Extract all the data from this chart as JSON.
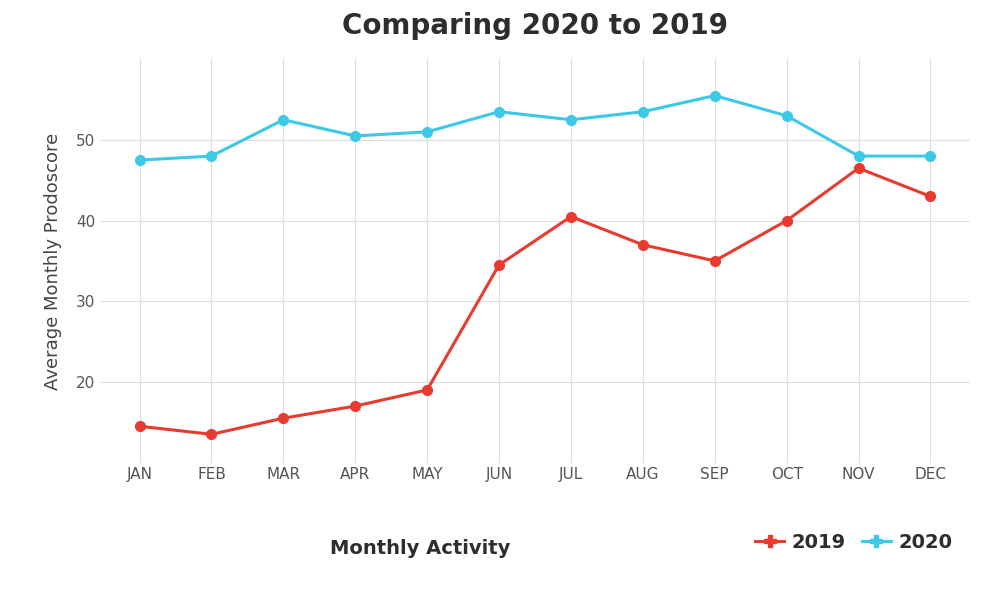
{
  "title": "Comparing 2020 to 2019",
  "xlabel": "Monthly Activity",
  "ylabel": "Average Monthly Prodoscore",
  "months": [
    "JAN",
    "FEB",
    "MAR",
    "APR",
    "MAY",
    "JUN",
    "JUL",
    "AUG",
    "SEP",
    "OCT",
    "NOV",
    "DEC"
  ],
  "data_2019": [
    14.5,
    13.5,
    15.5,
    17.0,
    19.0,
    34.5,
    40.5,
    37.0,
    35.0,
    40.0,
    46.5,
    43.0
  ],
  "data_2020": [
    47.5,
    48.0,
    52.5,
    50.5,
    51.0,
    53.5,
    52.5,
    53.5,
    55.5,
    53.0,
    48.0,
    48.0
  ],
  "color_2019": "#e83a2e",
  "color_2020": "#3ec8e8",
  "ylim": [
    10,
    60
  ],
  "yticks": [
    20,
    30,
    40,
    50
  ],
  "background_color": "#ffffff",
  "grid_color": "#dddddd",
  "title_fontsize": 20,
  "axis_label_fontsize": 13,
  "tick_fontsize": 11,
  "legend_fontsize": 14,
  "marker_size": 7,
  "linewidth": 2.2
}
